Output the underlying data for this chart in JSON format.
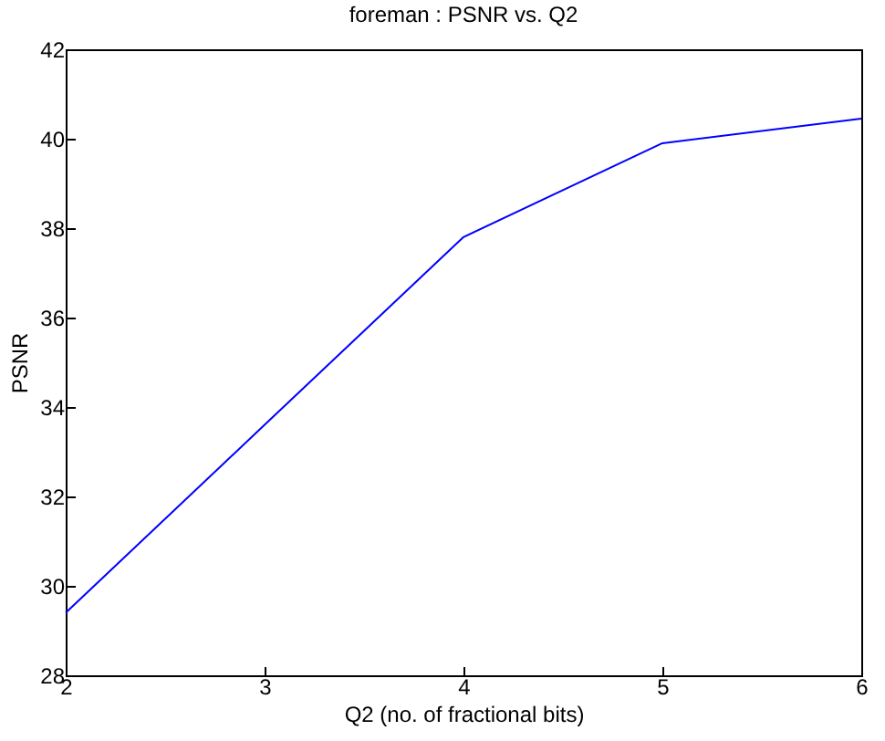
{
  "chart_data": {
    "type": "line",
    "title": "foreman : PSNR vs. Q2",
    "xlabel": "Q2 (no. of fractional bits)",
    "ylabel": "PSNR",
    "x": [
      2,
      3,
      4,
      5,
      6
    ],
    "series": [
      {
        "color": "#0000ff",
        "values": [
          29.4,
          33.6,
          37.8,
          39.9,
          40.45
        ]
      }
    ],
    "xlim": [
      2,
      6
    ],
    "xticks": [
      2,
      3,
      4,
      5,
      6
    ],
    "ylim": [
      28,
      42
    ],
    "yticks": [
      28,
      30,
      32,
      34,
      36,
      38,
      40,
      42
    ],
    "grid": false,
    "legend": false,
    "marker": "none",
    "line_style": "solid"
  }
}
